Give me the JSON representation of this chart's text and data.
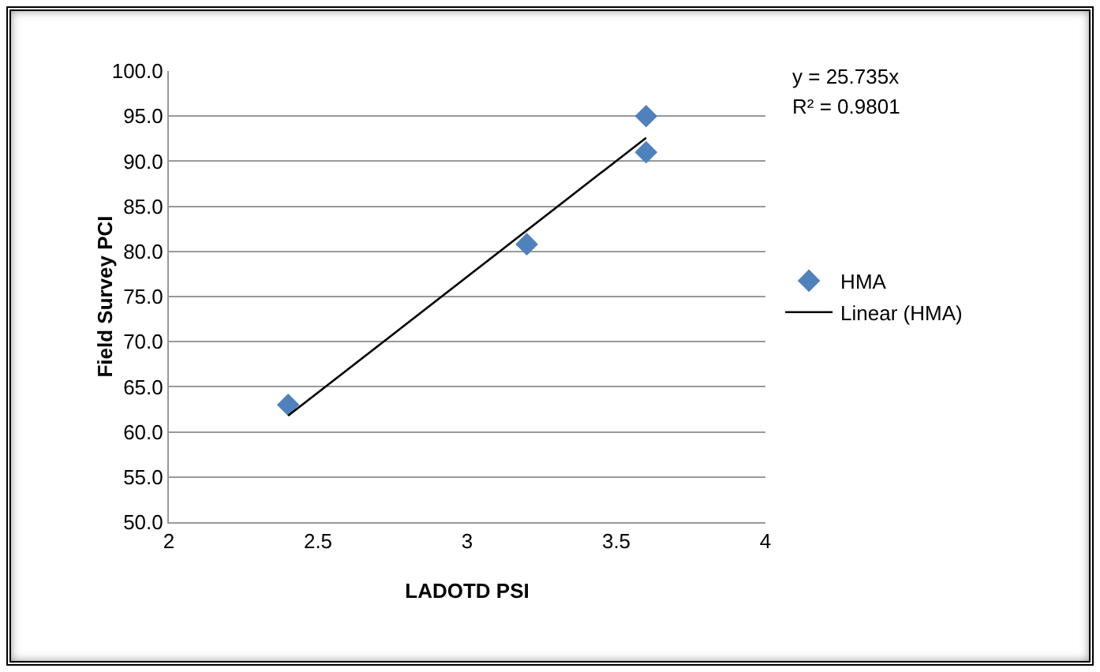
{
  "chart_data": {
    "type": "scatter",
    "xlabel": "LADOTD PSI",
    "ylabel": "Field Survey PCI",
    "series": [
      {
        "name": "HMA",
        "type": "scatter",
        "color": "#4f81bd",
        "marker": "diamond",
        "x": [
          2.4,
          3.2,
          3.6,
          3.6
        ],
        "values": [
          63,
          80.8,
          95,
          91
        ]
      },
      {
        "name": "Linear (HMA)",
        "type": "line",
        "color": "#000000",
        "marker": "none",
        "x": [
          2.4,
          3.6
        ],
        "values": [
          61.8,
          92.6
        ]
      }
    ],
    "annotations": [
      "y = 25.735x",
      "R² = 0.9801"
    ],
    "xlim": [
      2,
      4
    ],
    "xticks": [
      2,
      2.5,
      3,
      3.5,
      4
    ],
    "ylim": [
      50,
      100
    ],
    "yticks": [
      {
        "value": 50,
        "label": "50.0"
      },
      {
        "value": 55,
        "label": "55.0"
      },
      {
        "value": 60,
        "label": "60.0"
      },
      {
        "value": 65,
        "label": "65.0"
      },
      {
        "value": 70,
        "label": "70.0"
      },
      {
        "value": 75,
        "label": "75.0"
      },
      {
        "value": 80,
        "label": "80.0"
      },
      {
        "value": 85,
        "label": "85.0"
      },
      {
        "value": 90,
        "label": "90.0"
      },
      {
        "value": 95,
        "label": "95.0"
      },
      {
        "value": 100,
        "label": "100.0"
      }
    ],
    "grid": "y",
    "legend": "right"
  }
}
